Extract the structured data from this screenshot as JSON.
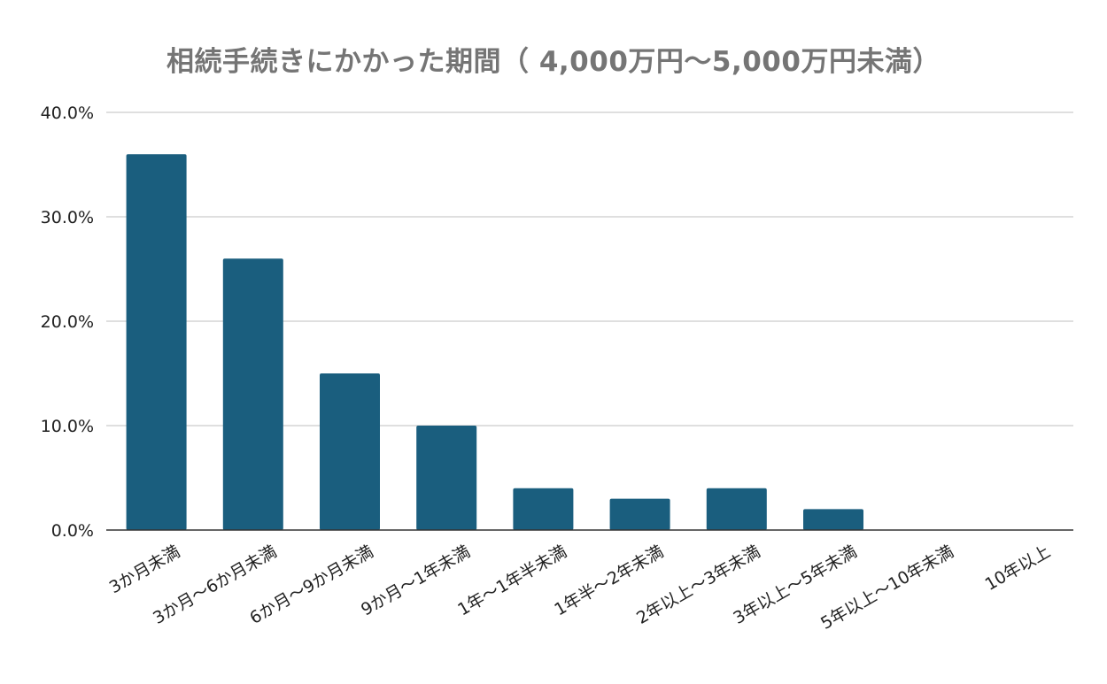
{
  "chart_data": {
    "type": "bar",
    "title": "相続手続きにかかった期間（ 4,000万円～5,000万円未満）",
    "xlabel": "",
    "ylabel": "",
    "ylim": [
      0,
      40
    ],
    "yticks": [
      "0.0%",
      "10.0%",
      "20.0%",
      "30.0%",
      "40.0%"
    ],
    "categories": [
      "3か月未満",
      "3か月～6か月未満",
      "6か月～9か月未満",
      "9か月～1年未満",
      "1年～1年半未満",
      "1年半～2年未満",
      "2年以上～3年未満",
      "3年以上～5年未満",
      "5年以上～10年未満",
      "10年以上"
    ],
    "values": [
      36,
      26,
      15,
      10,
      4,
      3,
      4,
      2,
      0,
      0
    ],
    "colors": {
      "bar": "#1a5e7e",
      "grid": "#cccccc",
      "axis": "#333333",
      "title": "#757575"
    },
    "grid": true,
    "legend": "none"
  }
}
